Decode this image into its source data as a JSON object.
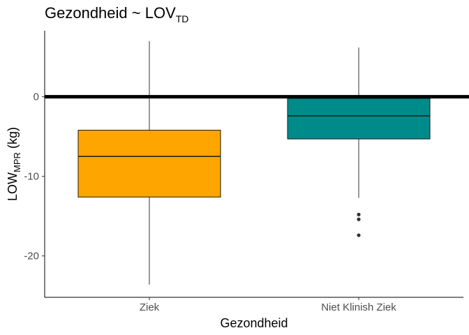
{
  "chart_data": {
    "type": "boxplot",
    "title": {
      "main": "Gezondheid ~ LOV",
      "sub": "TD"
    },
    "xlabel": "Gezondheid",
    "ylabel": {
      "main": "LOW",
      "sub": "MPR",
      "suffix": " (kg)"
    },
    "ylim": [
      -25.2,
      8.3
    ],
    "yticks": [
      0,
      -10,
      -20
    ],
    "ytick_labels": [
      "0",
      "-10",
      "-20"
    ],
    "reference_line": 0,
    "grid": false,
    "categories": [
      "Ziek",
      "Niet Klinish Ziek"
    ],
    "boxes": [
      {
        "category": "Ziek",
        "min": -23.6,
        "q1": -12.6,
        "median": -7.5,
        "q3": -4.2,
        "max": 7.0,
        "outliers": [],
        "color": "#FFA500"
      },
      {
        "category": "Niet Klinish Ziek",
        "min": -12.7,
        "q1": -5.3,
        "median": -2.4,
        "q3": -0.2,
        "max": 6.2,
        "outliers": [
          -14.8,
          -15.4,
          -17.4
        ],
        "color": "#008B8B"
      }
    ]
  }
}
